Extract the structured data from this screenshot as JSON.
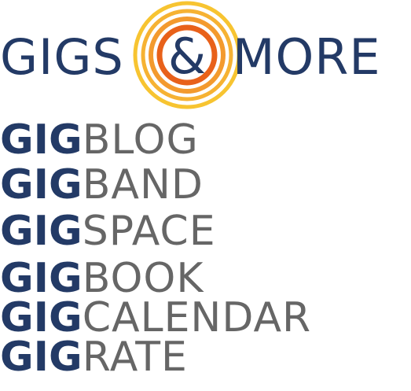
{
  "logo": {
    "left_word": "GIGS",
    "ampersand": "&",
    "right_word": "MORE",
    "colors": {
      "navy": "#233a66",
      "gray": "#666666",
      "ring_outer": "#f7c431",
      "ring_mid": "#f39a2e",
      "ring_inner": "#e8611a"
    },
    "icon": "concentric-rings-icon"
  },
  "rows": [
    {
      "prefix": "GIG",
      "suffix": "BLOG"
    },
    {
      "prefix": "GIG",
      "suffix": "BAND"
    },
    {
      "prefix": "GIG",
      "suffix": "SPACE"
    },
    {
      "prefix": "GIG",
      "suffix": "BOOK"
    },
    {
      "prefix": "GIG",
      "suffix": "CALENDAR"
    },
    {
      "prefix": "GIG",
      "suffix": "RATE"
    }
  ]
}
